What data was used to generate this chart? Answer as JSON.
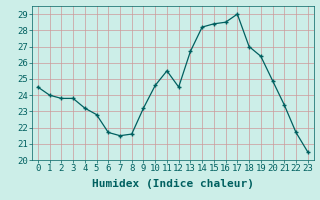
{
  "x": [
    0,
    1,
    2,
    3,
    4,
    5,
    6,
    7,
    8,
    9,
    10,
    11,
    12,
    13,
    14,
    15,
    16,
    17,
    18,
    19,
    20,
    21,
    22,
    23
  ],
  "y": [
    24.5,
    24.0,
    23.8,
    23.8,
    23.2,
    22.8,
    21.7,
    21.5,
    21.6,
    23.2,
    24.6,
    25.5,
    24.5,
    26.7,
    28.2,
    28.4,
    28.5,
    29.0,
    27.0,
    26.4,
    24.9,
    23.4,
    21.7,
    20.5
  ],
  "line_color": "#006060",
  "marker_color": "#006060",
  "bg_color": "#cceee8",
  "grid_color": "#cc9999",
  "xlabel": "Humidex (Indice chaleur)",
  "ylim": [
    20,
    29.5
  ],
  "xlim": [
    -0.5,
    23.5
  ],
  "yticks": [
    20,
    21,
    22,
    23,
    24,
    25,
    26,
    27,
    28,
    29
  ],
  "xticks": [
    0,
    1,
    2,
    3,
    4,
    5,
    6,
    7,
    8,
    9,
    10,
    11,
    12,
    13,
    14,
    15,
    16,
    17,
    18,
    19,
    20,
    21,
    22,
    23
  ],
  "xlabel_fontsize": 8,
  "tick_fontsize": 6.5
}
